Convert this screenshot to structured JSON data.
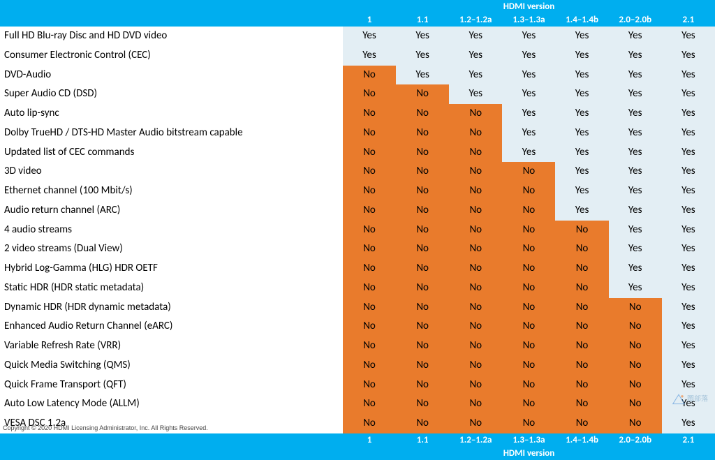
{
  "colors": {
    "header_bg": "#00aeef",
    "header_text": "#ffffff",
    "yes_bg": "#e3eef4",
    "no_bg": "#e97b2c",
    "cell_text": "#000000",
    "feature_bg": "#ffffff"
  },
  "header_group_label": "HDMI version",
  "footer_group_label": "HDMI version",
  "versions": [
    "1",
    "1.1",
    "1.2–1.2a",
    "1.3–1.3a",
    "1.4–1.4b",
    "2.0–2.0b",
    "2.1"
  ],
  "yes_label": "Yes",
  "no_label": "No",
  "features": [
    {
      "name": "Full HD Blu-ray Disc and HD DVD video",
      "support": [
        1,
        1,
        1,
        1,
        1,
        1,
        1
      ]
    },
    {
      "name": "Consumer Electronic Control (CEC)",
      "support": [
        1,
        1,
        1,
        1,
        1,
        1,
        1
      ]
    },
    {
      "name": "DVD-Audio",
      "support": [
        0,
        1,
        1,
        1,
        1,
        1,
        1
      ]
    },
    {
      "name": "Super Audio CD (DSD)",
      "support": [
        0,
        0,
        1,
        1,
        1,
        1,
        1
      ]
    },
    {
      "name": "Auto lip-sync",
      "support": [
        0,
        0,
        0,
        1,
        1,
        1,
        1
      ]
    },
    {
      "name": "Dolby TrueHD / DTS-HD Master Audio bitstream capable",
      "support": [
        0,
        0,
        0,
        1,
        1,
        1,
        1
      ]
    },
    {
      "name": "Updated list of CEC commands",
      "support": [
        0,
        0,
        0,
        1,
        1,
        1,
        1
      ]
    },
    {
      "name": "3D video",
      "support": [
        0,
        0,
        0,
        0,
        1,
        1,
        1
      ]
    },
    {
      "name": "Ethernet channel (100 Mbit/s)",
      "support": [
        0,
        0,
        0,
        0,
        1,
        1,
        1
      ]
    },
    {
      "name": "Audio return channel (ARC)",
      "support": [
        0,
        0,
        0,
        0,
        1,
        1,
        1
      ]
    },
    {
      "name": "4 audio streams",
      "support": [
        0,
        0,
        0,
        0,
        0,
        1,
        1
      ]
    },
    {
      "name": "2 video streams (Dual View)",
      "support": [
        0,
        0,
        0,
        0,
        0,
        1,
        1
      ]
    },
    {
      "name": "Hybrid Log-Gamma (HLG) HDR OETF",
      "support": [
        0,
        0,
        0,
        0,
        0,
        1,
        1
      ]
    },
    {
      "name": "Static HDR (HDR static metadata)",
      "support": [
        0,
        0,
        0,
        0,
        0,
        1,
        1
      ]
    },
    {
      "name": "Dynamic HDR (HDR dynamic metadata)",
      "support": [
        0,
        0,
        0,
        0,
        0,
        0,
        1
      ]
    },
    {
      "name": "Enhanced Audio Return Channel (eARC)",
      "support": [
        0,
        0,
        0,
        0,
        0,
        0,
        1
      ]
    },
    {
      "name": "Variable Refresh Rate (VRR)",
      "support": [
        0,
        0,
        0,
        0,
        0,
        0,
        1
      ]
    },
    {
      "name": "Quick Media Switching (QMS)",
      "support": [
        0,
        0,
        0,
        0,
        0,
        0,
        1
      ]
    },
    {
      "name": "Quick Frame Transport (QFT)",
      "support": [
        0,
        0,
        0,
        0,
        0,
        0,
        1
      ]
    },
    {
      "name": "Auto Low Latency Mode (ALLM)",
      "support": [
        0,
        0,
        0,
        0,
        0,
        0,
        1
      ]
    },
    {
      "name": "VESA DSC 1.2a",
      "support": [
        0,
        0,
        0,
        0,
        0,
        0,
        1
      ]
    }
  ],
  "copyright": "Copyright © 2020 HDMI Licensing Administrator, Inc.  All Rights Reserved.",
  "watermark_text": "圖部落"
}
